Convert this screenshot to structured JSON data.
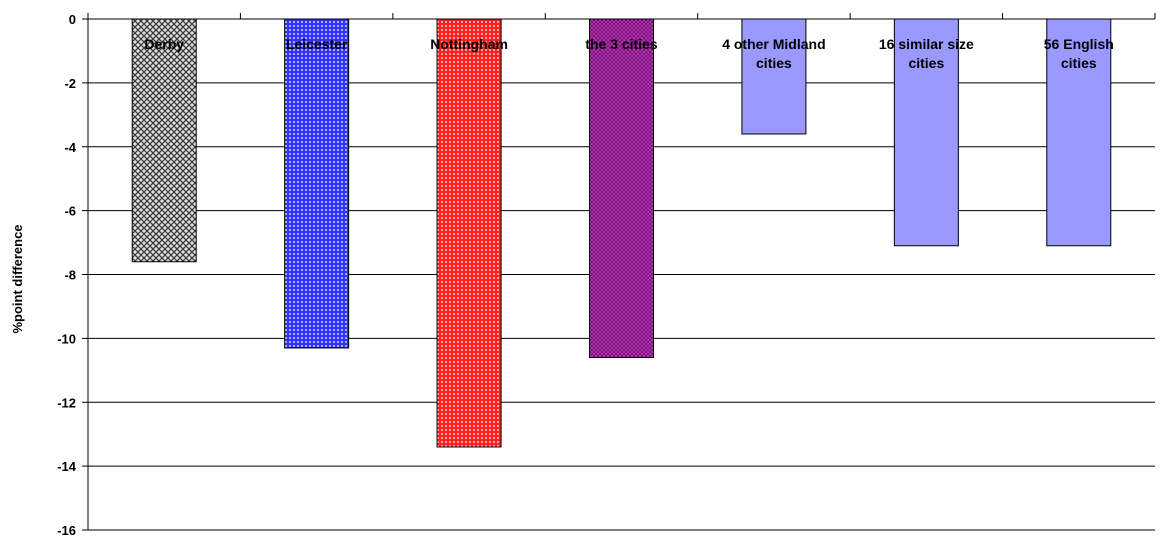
{
  "chart_data": {
    "type": "bar",
    "title": "",
    "xlabel": "",
    "ylabel": "%point difference",
    "ylim": [
      -16,
      0
    ],
    "yticks": [
      0,
      -2,
      -4,
      -6,
      -8,
      -10,
      -12,
      -14,
      -16
    ],
    "ytick_labels": [
      "0",
      "-2",
      "-4",
      "-6",
      "-8",
      "-10",
      "-12",
      "-14",
      "-16"
    ],
    "grid": true,
    "legend": "none",
    "categories": [
      [
        "Derby"
      ],
      [
        "Leicester"
      ],
      [
        "Nottingham"
      ],
      [
        "the 3 cities"
      ],
      [
        "4 other Midland",
        "cities"
      ],
      [
        "16 similar size",
        "cities"
      ],
      [
        "56 English",
        "cities"
      ]
    ],
    "values": [
      -7.6,
      -10.3,
      -13.4,
      -10.6,
      -3.6,
      -7.1,
      -7.1
    ],
    "colors": [
      "#808080",
      "#3333ff",
      "#ff2020",
      "#800080",
      "#9999ff",
      "#9999ff",
      "#9999ff"
    ],
    "patterns": [
      "crosshatch",
      "dots",
      "dots",
      "fine",
      "none",
      "none",
      "none"
    ]
  }
}
